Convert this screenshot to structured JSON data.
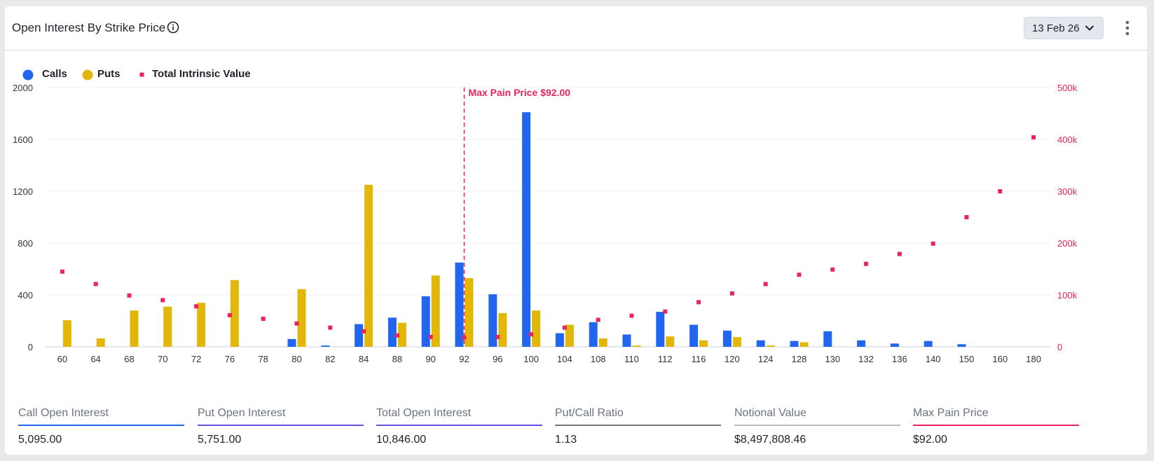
{
  "header": {
    "title": "Open Interest By Strike Price",
    "date_label": "13 Feb 26"
  },
  "legend": [
    {
      "name": "Calls",
      "color": "#2266f0",
      "shape": "circle"
    },
    {
      "name": "Puts",
      "color": "#e2b70a",
      "shape": "circle"
    },
    {
      "name": "Total Intrinsic Value",
      "color": "#e8245f",
      "shape": "square"
    }
  ],
  "colors": {
    "calls": "#2266f0",
    "puts": "#e2b70a",
    "intrinsic": "#e8245f",
    "grid": "#eeeff2",
    "axis_text": "#333333"
  },
  "chart_data": {
    "type": "bar",
    "categories": [
      "60",
      "64",
      "68",
      "70",
      "72",
      "76",
      "78",
      "80",
      "82",
      "84",
      "88",
      "90",
      "92",
      "96",
      "100",
      "104",
      "108",
      "110",
      "112",
      "116",
      "120",
      "124",
      "128",
      "130",
      "132",
      "136",
      "140",
      "150",
      "160",
      "180"
    ],
    "series": [
      {
        "name": "Calls",
        "axis": "left",
        "values": [
          0,
          0,
          0,
          0,
          0,
          0,
          0,
          60,
          10,
          175,
          225,
          390,
          650,
          405,
          1810,
          105,
          190,
          95,
          270,
          170,
          125,
          50,
          45,
          120,
          50,
          25,
          45,
          20,
          0,
          0
        ]
      },
      {
        "name": "Puts",
        "axis": "left",
        "values": [
          205,
          65,
          280,
          310,
          340,
          515,
          0,
          445,
          0,
          1250,
          185,
          550,
          530,
          260,
          280,
          170,
          65,
          10,
          80,
          50,
          75,
          10,
          35,
          0,
          0,
          0,
          0,
          0,
          0,
          0
        ]
      },
      {
        "name": "Total Intrinsic Value",
        "axis": "right",
        "type": "scatter",
        "values": [
          145000,
          121000,
          99000,
          90000,
          78000,
          61000,
          54000,
          45000,
          37000,
          30000,
          22000,
          19000,
          18000,
          19000,
          24000,
          37000,
          52000,
          60000,
          68000,
          86000,
          103000,
          121000,
          139000,
          149000,
          160000,
          179000,
          199000,
          250000,
          300000,
          404000
        ]
      }
    ],
    "y_left": {
      "range": [
        0,
        2000
      ],
      "ticks": [
        "0",
        "400",
        "800",
        "1200",
        "1600",
        "2000"
      ]
    },
    "y_right": {
      "range": [
        0,
        500000
      ],
      "ticks": [
        "0",
        "100k",
        "200k",
        "300k",
        "400k",
        "500k"
      ]
    },
    "max_pain": {
      "category": "92",
      "label": "Max Pain Price $92.00"
    },
    "grid": true,
    "legend_position": "top-left"
  },
  "stats": [
    {
      "label": "Call Open Interest",
      "value": "5,095.00",
      "color": "#2266f0"
    },
    {
      "label": "Put Open Interest",
      "value": "5,751.00",
      "color": "#6f4ce0"
    },
    {
      "label": "Total Open Interest",
      "value": "10,846.00",
      "color": "#6f4ce0"
    },
    {
      "label": "Put/Call Ratio",
      "value": "1.13",
      "color": "#777777"
    },
    {
      "label": "Notional Value",
      "value": "$8,497,808.46",
      "color": "#bbbbbb"
    },
    {
      "label": "Max Pain Price",
      "value": "$92.00",
      "color": "#e8245f"
    }
  ]
}
